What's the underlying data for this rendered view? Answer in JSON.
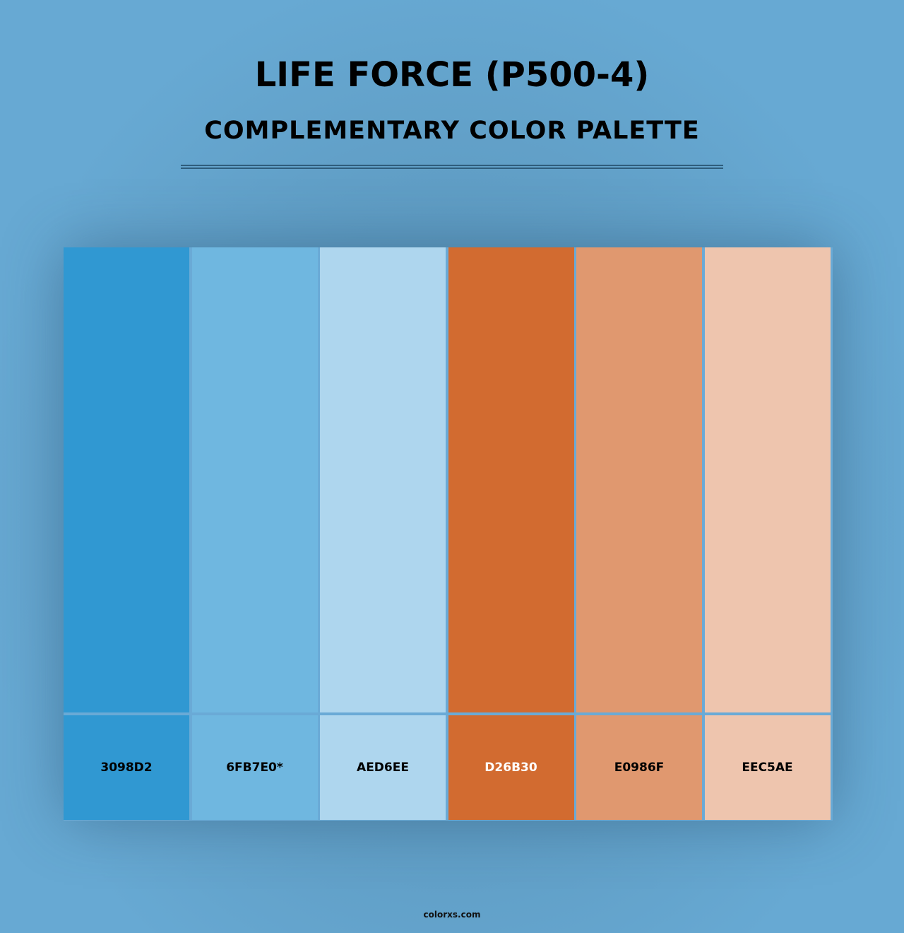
{
  "header": {
    "title": "LIFE FORCE (P500-4)",
    "subtitle": "COMPLEMENTARY COLOR PALETTE"
  },
  "swatches": [
    {
      "label": "3098D2",
      "color": "#3098d2",
      "text_color": "#000000"
    },
    {
      "label": "6FB7E0*",
      "color": "#6fb7e0",
      "text_color": "#000000"
    },
    {
      "label": "AED6EE",
      "color": "#aed6ee",
      "text_color": "#000000"
    },
    {
      "label": "D26B30",
      "color": "#d26b30",
      "text_color": "#ffffff"
    },
    {
      "label": "E0986F",
      "color": "#e0986f",
      "text_color": "#000000"
    },
    {
      "label": "EEC5AE",
      "color": "#eec5ae",
      "text_color": "#000000"
    }
  ],
  "footer": {
    "site": "colorxs.com"
  }
}
